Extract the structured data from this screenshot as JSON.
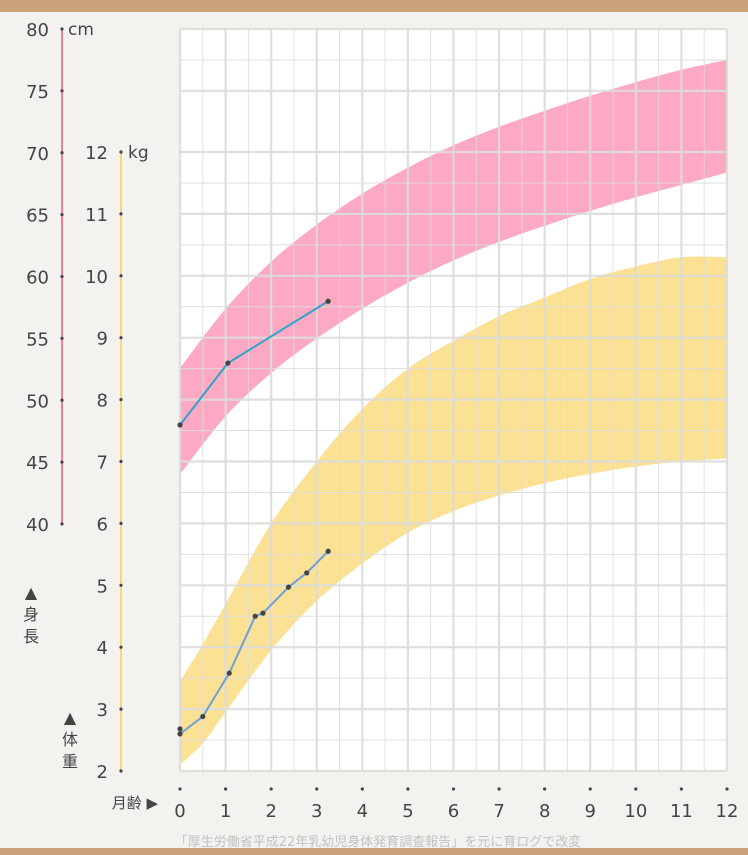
{
  "chart_data": {
    "type": "line",
    "title": "",
    "x_axis": {
      "label": "月齢 ▶",
      "range": [
        0,
        12
      ],
      "ticks": [
        "0",
        "1",
        "2",
        "3",
        "4",
        "5",
        "6",
        "7",
        "8",
        "9",
        "10",
        "11",
        "12"
      ]
    },
    "height_axis": {
      "unit": "cm",
      "label": "▲身長",
      "range": [
        40,
        80
      ],
      "ticks": [
        "40",
        "45",
        "50",
        "55",
        "60",
        "65",
        "70",
        "75",
        "80"
      ],
      "color": "#f47aa0"
    },
    "weight_axis": {
      "unit": "kg",
      "label": "▲体重",
      "range": [
        2,
        12
      ],
      "ticks": [
        "2",
        "3",
        "4",
        "5",
        "6",
        "7",
        "8",
        "9",
        "10",
        "11",
        "12"
      ],
      "color": "#f5d87a"
    },
    "grid": true,
    "height_band": {
      "color": "#fda4c0",
      "x": [
        0,
        1,
        2,
        3,
        4,
        5,
        6,
        7,
        8,
        9,
        10,
        11,
        12
      ],
      "lower": [
        44.0,
        48.7,
        52.2,
        55.0,
        57.4,
        59.5,
        61.3,
        62.8,
        64.1,
        65.3,
        66.4,
        67.4,
        68.4
      ],
      "upper": [
        52.6,
        57.4,
        61.2,
        64.2,
        66.7,
        68.8,
        70.6,
        72.1,
        73.4,
        74.6,
        75.7,
        76.7,
        77.5
      ]
    },
    "weight_band": {
      "color": "#fbdf8e",
      "x": [
        0,
        0.5,
        1,
        2,
        3,
        4,
        5,
        6,
        7,
        8,
        9,
        10,
        11,
        12
      ],
      "lower": [
        2.1,
        2.45,
        2.95,
        3.95,
        4.75,
        5.35,
        5.85,
        6.2,
        6.45,
        6.65,
        6.8,
        6.92,
        7.0,
        7.05
      ],
      "upper": [
        3.45,
        4.05,
        4.7,
        6.0,
        7.0,
        7.85,
        8.5,
        8.95,
        9.35,
        9.65,
        9.95,
        10.15,
        10.3,
        10.3
      ]
    },
    "series": [
      {
        "measure": "height",
        "color": "#2ba5c9",
        "x": [
          0,
          1.05,
          3.25
        ],
        "y": [
          48.0,
          53.0,
          58.0
        ]
      },
      {
        "measure": "weight",
        "color": "#6f9fd8",
        "x": [
          0,
          0.5,
          1.08,
          1.65,
          1.82,
          2.38,
          2.78,
          3.25
        ],
        "y": [
          2.6,
          2.88,
          3.58,
          4.5,
          4.55,
          4.97,
          5.2,
          5.55
        ]
      },
      {
        "measure": "weight",
        "color": "#6f9fd8",
        "x": [
          0
        ],
        "y": [
          2.68
        ]
      }
    ]
  },
  "footnote": "「厚生労働省平成22年乳幼児身体発育調査報告」を元に育ログで改変"
}
